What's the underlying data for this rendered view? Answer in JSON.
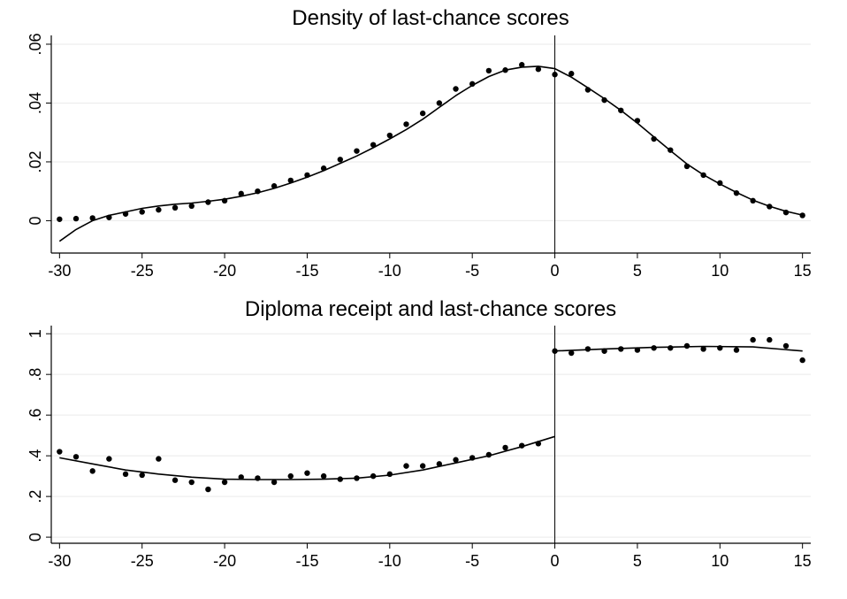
{
  "chart_data": [
    {
      "type": "scatter",
      "title": "Density of last-chance scores",
      "xlabel": "",
      "ylabel": "",
      "xlim": [
        -30.5,
        15.5
      ],
      "ylim": [
        -0.011,
        0.063
      ],
      "x_ticks": [
        -30,
        -25,
        -20,
        -15,
        -10,
        -5,
        0,
        5,
        10,
        15
      ],
      "x_tick_labels": [
        "-30",
        "-25",
        "-20",
        "-15",
        "-10",
        "-5",
        "0",
        "5",
        "10",
        "15"
      ],
      "y_ticks": [
        0,
        0.02,
        0.04,
        0.06
      ],
      "y_tick_labels": [
        "0",
        ".02",
        ".04",
        ".06"
      ],
      "grid": true,
      "cutoff_line_x": 0,
      "points": {
        "x": [
          -30,
          -29,
          -28,
          -27,
          -26,
          -25,
          -24,
          -23,
          -22,
          -21,
          -20,
          -19,
          -18,
          -17,
          -16,
          -15,
          -14,
          -13,
          -12,
          -11,
          -10,
          -9,
          -8,
          -7,
          -6,
          -5,
          -4,
          -3,
          -2,
          -1,
          0,
          1,
          2,
          3,
          4,
          5,
          6,
          7,
          8,
          9,
          10,
          11,
          12,
          13,
          14,
          15
        ],
        "y": [
          0.0005,
          0.0007,
          0.0009,
          0.0011,
          0.0023,
          0.003,
          0.0037,
          0.0044,
          0.005,
          0.0063,
          0.0068,
          0.0092,
          0.01,
          0.0118,
          0.0137,
          0.0155,
          0.0178,
          0.0208,
          0.0237,
          0.0258,
          0.029,
          0.0328,
          0.0365,
          0.04,
          0.0448,
          0.0465,
          0.051,
          0.0512,
          0.053,
          0.0515,
          0.0497,
          0.05,
          0.0445,
          0.041,
          0.0375,
          0.034,
          0.0278,
          0.024,
          0.0185,
          0.0155,
          0.0128,
          0.0094,
          0.0068,
          0.0048,
          0.0028,
          0.0018
        ]
      },
      "fit": {
        "x": [
          -30,
          -29,
          -28,
          -27,
          -26,
          -25,
          -24,
          -23,
          -22,
          -21,
          -20,
          -19,
          -18,
          -17,
          -16,
          -15,
          -14,
          -13,
          -12,
          -11,
          -10,
          -9,
          -8,
          -7,
          -6,
          -5,
          -4,
          -3,
          -2,
          -1,
          0,
          1,
          2,
          3,
          4,
          5,
          6,
          7,
          8,
          9,
          10,
          11,
          12,
          13,
          14,
          15
        ],
        "y": [
          -0.007,
          -0.003,
          0.0,
          0.0018,
          0.003,
          0.0042,
          0.005,
          0.0056,
          0.006,
          0.0066,
          0.0073,
          0.0083,
          0.0095,
          0.011,
          0.0128,
          0.0148,
          0.017,
          0.0195,
          0.022,
          0.0248,
          0.0278,
          0.031,
          0.0345,
          0.0385,
          0.0425,
          0.046,
          0.049,
          0.0512,
          0.0522,
          0.0525,
          0.0517,
          0.0488,
          0.0452,
          0.0415,
          0.0375,
          0.0332,
          0.0285,
          0.0238,
          0.0193,
          0.0156,
          0.0125,
          0.0096,
          0.007,
          0.0049,
          0.0032,
          0.0019
        ]
      }
    },
    {
      "type": "scatter",
      "title": "Diploma receipt and last-chance scores",
      "xlabel": "",
      "ylabel": "",
      "xlim": [
        -30.5,
        15.5
      ],
      "ylim": [
        -0.03,
        1.04
      ],
      "x_ticks": [
        -30,
        -25,
        -20,
        -15,
        -10,
        -5,
        0,
        5,
        10,
        15
      ],
      "x_tick_labels": [
        "-30",
        "-25",
        "-20",
        "-15",
        "-10",
        "-5",
        "0",
        "5",
        "10",
        "15"
      ],
      "y_ticks": [
        0,
        0.2,
        0.4,
        0.6,
        0.8,
        1
      ],
      "y_tick_labels": [
        "0",
        ".2",
        ".4",
        ".6",
        ".8",
        "1"
      ],
      "grid": true,
      "cutoff_line_x": 0,
      "points": {
        "x": [
          -30,
          -29,
          -28,
          -27,
          -26,
          -25,
          -24,
          -23,
          -22,
          -21,
          -20,
          -19,
          -18,
          -17,
          -16,
          -15,
          -14,
          -13,
          -12,
          -11,
          -10,
          -9,
          -8,
          -7,
          -6,
          -5,
          -4,
          -3,
          -2,
          -1,
          0,
          1,
          2,
          3,
          4,
          5,
          6,
          7,
          8,
          9,
          10,
          11,
          12,
          13,
          14,
          15
        ],
        "y": [
          0.42,
          0.395,
          0.325,
          0.385,
          0.31,
          0.305,
          0.385,
          0.28,
          0.27,
          0.235,
          0.27,
          0.295,
          0.29,
          0.27,
          0.3,
          0.315,
          0.3,
          0.285,
          0.29,
          0.3,
          0.31,
          0.35,
          0.35,
          0.36,
          0.38,
          0.39,
          0.405,
          0.44,
          0.45,
          0.46,
          0.915,
          0.905,
          0.925,
          0.915,
          0.925,
          0.92,
          0.93,
          0.93,
          0.94,
          0.925,
          0.93,
          0.92,
          0.97,
          0.97,
          0.94,
          0.87
        ]
      },
      "fit_left": {
        "x": [
          -30,
          -28,
          -26,
          -24,
          -22,
          -20,
          -18,
          -16,
          -14,
          -12,
          -10,
          -8,
          -6,
          -4,
          -2,
          0
        ],
        "y": [
          0.39,
          0.36,
          0.33,
          0.31,
          0.295,
          0.285,
          0.283,
          0.283,
          0.285,
          0.29,
          0.305,
          0.33,
          0.365,
          0.4,
          0.445,
          0.495
        ]
      },
      "fit_right": {
        "x": [
          0,
          3,
          6,
          9,
          12,
          15
        ],
        "y": [
          0.915,
          0.925,
          0.933,
          0.938,
          0.935,
          0.915
        ]
      }
    }
  ]
}
